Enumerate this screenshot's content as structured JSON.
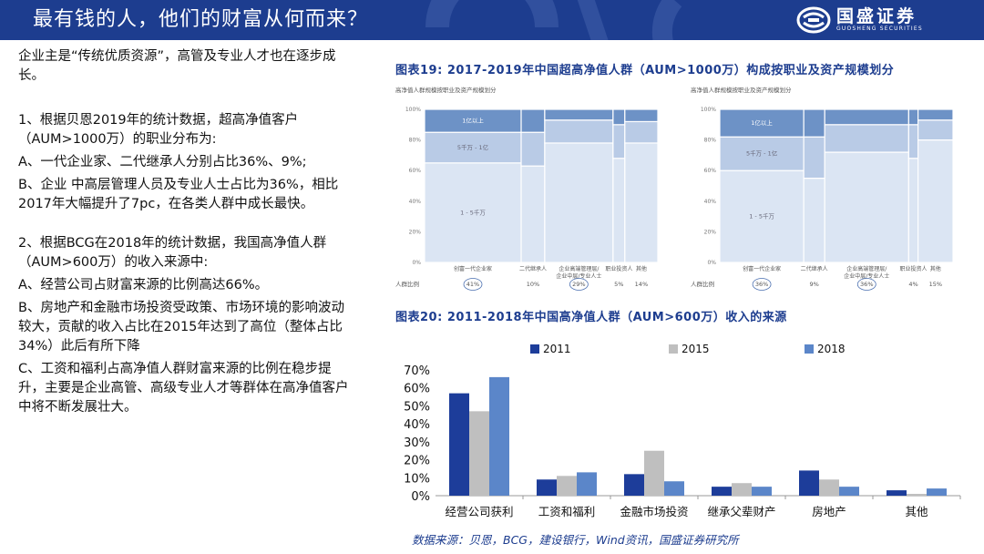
{
  "header": {
    "title": "最有钱的人，他们的财富从何而来？",
    "logo_cn": "国盛证券",
    "logo_en": "GUOSHENG SECURITIES"
  },
  "left_text": {
    "intro": "企业主是“传统优质资源”，高管及专业人才也在逐步成长。",
    "p1_head": "1、根据贝恩2019年的统计数据，超高净值客户（AUM>1000万）的职业分布为:",
    "p1_a": "A、一代企业家、二代继承人分别占比36%、9%;",
    "p1_b": "B、企业 中高层管理人员及专业人士占比为36%，相比2017年大幅提升了7pc，在各类人群中成长最快。",
    "p2_head": "2、根据BCG在2018年的统计数据，我国高净值人群（AUM>600万）的收入来源中:",
    "p2_a": "A、经营公司占财富来源的比例高达66%。",
    "p2_b": "B、房地产和金融市场投资受政策、市场环境的影响波动较大，贡献的收入占比在2015年达到了高位（整体占比34%）此后有所下降",
    "p2_c": "C、工资和福利占高净值人群财富来源的比例在稳步提升，主要是企业高管、高级专业人才等群体在高净值客户中将不断发展壮大。"
  },
  "fig19": {
    "title": "图表19:  2017-2019年中国超高净值人群（AUM>1000万）构成按职业及资产规模划分",
    "panels": [
      {
        "subtitle": "高净值人群规模按职业及资产规模划分",
        "y_ticks": [
          "100%",
          "80%",
          "60%",
          "40%",
          "20%",
          "0%"
        ],
        "groups": [
          {
            "label": "创富一代企业家",
            "ratio": "41%",
            "circled": true,
            "bands": [
              0.65,
              0.2,
              0.15
            ]
          },
          {
            "label": "二代继承人",
            "ratio": "10%",
            "circled": false,
            "bands": [
              0.63,
              0.22,
              0.15
            ]
          },
          {
            "label": "企业高端管理层/企业中层/专业人士",
            "ratio": "29%",
            "circled": true,
            "bands": [
              0.78,
              0.15,
              0.07
            ]
          },
          {
            "label": "职业投资人",
            "ratio": "5%",
            "circled": false,
            "bands": [
              0.68,
              0.22,
              0.1
            ]
          },
          {
            "label": "其他",
            "ratio": "14%",
            "circled": false,
            "bands": [
              0.78,
              0.14,
              0.08
            ]
          }
        ],
        "band_labels": [
          "1 - 5千万",
          "5千万 - 1亿",
          "1亿以上"
        ],
        "ratio_label": "人群比例"
      },
      {
        "subtitle": "高净值人群规模按职业及资产规模划分",
        "y_ticks": [
          "100%",
          "80%",
          "60%",
          "40%",
          "20%",
          "0%"
        ],
        "groups": [
          {
            "label": "创富一代企业家",
            "ratio": "36%",
            "circled": true,
            "bands": [
              0.6,
              0.22,
              0.18
            ]
          },
          {
            "label": "二代继承人",
            "ratio": "9%",
            "circled": false,
            "bands": [
              0.55,
              0.27,
              0.18
            ]
          },
          {
            "label": "企业高端管理层/企业中层/专业人士",
            "ratio": "36%",
            "circled": true,
            "bands": [
              0.72,
              0.18,
              0.1
            ]
          },
          {
            "label": "职业投资人",
            "ratio": "4%",
            "circled": false,
            "bands": [
              0.68,
              0.22,
              0.1
            ]
          },
          {
            "label": "其他",
            "ratio": "15%",
            "circled": false,
            "bands": [
              0.8,
              0.13,
              0.07
            ]
          }
        ],
        "band_labels": [
          "1 - 5千万",
          "5千万 - 1亿",
          "1亿以上"
        ],
        "ratio_label": "人群比例"
      }
    ]
  },
  "fig20": {
    "title": "图表20:  2011-2018年中国高净值人群（AUM>600万）收入的来源"
  },
  "chart_data": {
    "type": "bar",
    "categories": [
      "经营公司获利",
      "工资和福利",
      "金融市场投资",
      "继承父辈财产",
      "房地产",
      "其他"
    ],
    "series": [
      {
        "name": "2011",
        "color": "#1d3d9a",
        "values": [
          57,
          9,
          12,
          5,
          14,
          3
        ]
      },
      {
        "name": "2015",
        "color": "#bfbfbf",
        "values": [
          47,
          11,
          25,
          7,
          9,
          1
        ]
      },
      {
        "name": "2018",
        "color": "#5b86c9",
        "values": [
          66,
          13,
          8,
          5,
          5,
          4
        ]
      }
    ],
    "y_ticks": [
      "70%",
      "60%",
      "50%",
      "40%",
      "30%",
      "20%",
      "10%",
      "0%"
    ],
    "ylim": [
      0,
      70
    ],
    "legend_position": "top"
  },
  "source": "数据来源：贝恩，BCG，建设银行，Wind资讯，国盛证券研究所"
}
